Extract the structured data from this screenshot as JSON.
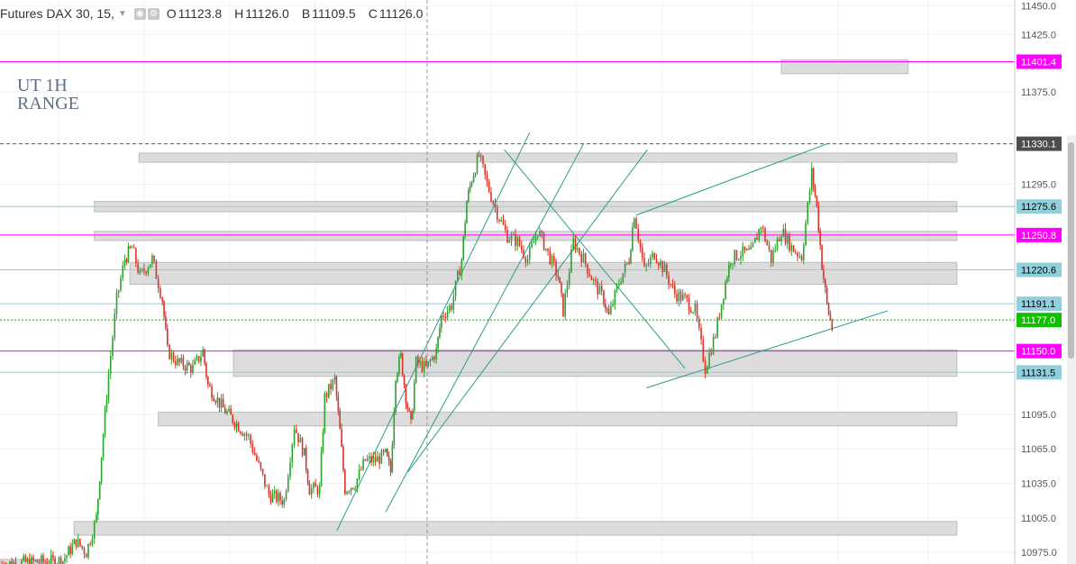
{
  "header": {
    "symbol": "Futures DAX 30, 15,",
    "ohlc": [
      {
        "label": "O",
        "value": "11123.8"
      },
      {
        "label": "H",
        "value": "11126.0"
      },
      {
        "label": "B",
        "value": "11109.5"
      },
      {
        "label": "C",
        "value": "11126.0"
      }
    ],
    "icons": [
      "eye-icon",
      "settings-icon"
    ]
  },
  "annotation": {
    "line1": "UT 1H",
    "line2": "RANGE"
  },
  "price_axis": {
    "ticks": [
      "11450.0",
      "11425.0",
      "11401.4",
      "11375.0",
      "11330.1",
      "11295.0",
      "11275.6",
      "11250.8",
      "11220.6",
      "11191.1",
      "11177.0",
      "11150.0",
      "11131.5",
      "11095.0",
      "11065.0",
      "11035.0",
      "11005.0",
      "10975.0"
    ]
  },
  "colors": {
    "accent_magenta": "#ff00ff",
    "level_cyan": "#8fd0dc",
    "current_green": "#0fbf00",
    "dark_label": "#4d4d4d",
    "trendline": "#2b9e88",
    "candle_up": "#2ea12e",
    "candle_down": "#d9342b"
  },
  "chart_data": {
    "type": "candlestick",
    "title": "Futures DAX 30, 15,",
    "ylim": [
      10965,
      11455
    ],
    "horizontal_lines": [
      {
        "price": 11401.4,
        "color": "#ff00ff",
        "label": "11401.4"
      },
      {
        "price": 11330.1,
        "color": "#555555",
        "label": "11330.1",
        "style": "dashed"
      },
      {
        "price": 11275.6,
        "color": "#8fd0dc",
        "label": "11275.6"
      },
      {
        "price": 11250.8,
        "color": "#ff00ff",
        "label": "11250.8"
      },
      {
        "price": 11220.6,
        "color": "#8fd0dc",
        "label": "11220.6"
      },
      {
        "price": 11191.1,
        "color": "#8fd0dc",
        "label": "11191.1"
      },
      {
        "price": 11177.0,
        "color": "#0fbf00",
        "label": "11177.0",
        "style": "dotted"
      },
      {
        "price": 11150.0,
        "color": "#ff00ff",
        "label": "11150.0"
      },
      {
        "price": 11131.5,
        "color": "#8fd0dc",
        "label": "11131.5"
      }
    ],
    "zones": [
      {
        "top": 11403,
        "bottom": 11391,
        "from": 0.77,
        "to": 0.895
      },
      {
        "top": 11322,
        "bottom": 11314,
        "from": 0.137,
        "to": 0.943
      },
      {
        "top": 11280,
        "bottom": 11271,
        "from": 0.093,
        "to": 0.943
      },
      {
        "top": 11254,
        "bottom": 11246,
        "from": 0.093,
        "to": 0.943
      },
      {
        "top": 11227,
        "bottom": 11208,
        "from": 0.128,
        "to": 0.943
      },
      {
        "top": 11151,
        "bottom": 11128,
        "from": 0.23,
        "to": 0.943
      },
      {
        "top": 11097,
        "bottom": 11085,
        "from": 0.156,
        "to": 0.943
      },
      {
        "top": 11002,
        "bottom": 10990,
        "from": 0.073,
        "to": 0.943
      },
      {
        "top": 10969,
        "bottom": 10963,
        "from": 0.0,
        "to": 0.053
      }
    ],
    "path_points": [
      [
        0.0,
        10965
      ],
      [
        0.062,
        10968
      ],
      [
        0.075,
        10985
      ],
      [
        0.085,
        10975
      ],
      [
        0.095,
        11005
      ],
      [
        0.1,
        11060
      ],
      [
        0.107,
        11130
      ],
      [
        0.115,
        11195
      ],
      [
        0.123,
        11230
      ],
      [
        0.13,
        11240
      ],
      [
        0.138,
        11215
      ],
      [
        0.15,
        11230
      ],
      [
        0.16,
        11195
      ],
      [
        0.165,
        11150
      ],
      [
        0.175,
        11140
      ],
      [
        0.19,
        11135
      ],
      [
        0.2,
        11150
      ],
      [
        0.205,
        11120
      ],
      [
        0.22,
        11100
      ],
      [
        0.235,
        11085
      ],
      [
        0.245,
        11075
      ],
      [
        0.255,
        11050
      ],
      [
        0.265,
        11025
      ],
      [
        0.28,
        11020
      ],
      [
        0.29,
        11085
      ],
      [
        0.3,
        11060
      ],
      [
        0.305,
        11030
      ],
      [
        0.315,
        11030
      ],
      [
        0.32,
        11110
      ],
      [
        0.33,
        11125
      ],
      [
        0.335,
        11080
      ],
      [
        0.34,
        11030
      ],
      [
        0.35,
        11035
      ],
      [
        0.36,
        11055
      ],
      [
        0.37,
        11055
      ],
      [
        0.38,
        11060
      ],
      [
        0.385,
        11045
      ],
      [
        0.39,
        11130
      ],
      [
        0.395,
        11145
      ],
      [
        0.4,
        11110
      ],
      [
        0.405,
        11085
      ],
      [
        0.41,
        11140
      ],
      [
        0.42,
        11135
      ],
      [
        0.43,
        11150
      ],
      [
        0.435,
        11180
      ],
      [
        0.445,
        11190
      ],
      [
        0.455,
        11230
      ],
      [
        0.46,
        11280
      ],
      [
        0.465,
        11300
      ],
      [
        0.472,
        11320
      ],
      [
        0.48,
        11295
      ],
      [
        0.49,
        11270
      ],
      [
        0.5,
        11250
      ],
      [
        0.51,
        11245
      ],
      [
        0.52,
        11230
      ],
      [
        0.53,
        11255
      ],
      [
        0.54,
        11235
      ],
      [
        0.55,
        11215
      ],
      [
        0.555,
        11185
      ],
      [
        0.565,
        11245
      ],
      [
        0.575,
        11230
      ],
      [
        0.585,
        11210
      ],
      [
        0.595,
        11195
      ],
      [
        0.6,
        11180
      ],
      [
        0.61,
        11210
      ],
      [
        0.62,
        11230
      ],
      [
        0.625,
        11270
      ],
      [
        0.635,
        11220
      ],
      [
        0.645,
        11235
      ],
      [
        0.655,
        11220
      ],
      [
        0.665,
        11200
      ],
      [
        0.675,
        11195
      ],
      [
        0.685,
        11185
      ],
      [
        0.695,
        11135
      ],
      [
        0.705,
        11165
      ],
      [
        0.715,
        11210
      ],
      [
        0.72,
        11230
      ],
      [
        0.73,
        11235
      ],
      [
        0.74,
        11235
      ],
      [
        0.75,
        11260
      ],
      [
        0.76,
        11230
      ],
      [
        0.77,
        11255
      ],
      [
        0.78,
        11240
      ],
      [
        0.79,
        11232
      ],
      [
        0.8,
        11305
      ],
      [
        0.805,
        11275
      ],
      [
        0.81,
        11225
      ],
      [
        0.815,
        11190
      ],
      [
        0.82,
        11170
      ]
    ]
  }
}
